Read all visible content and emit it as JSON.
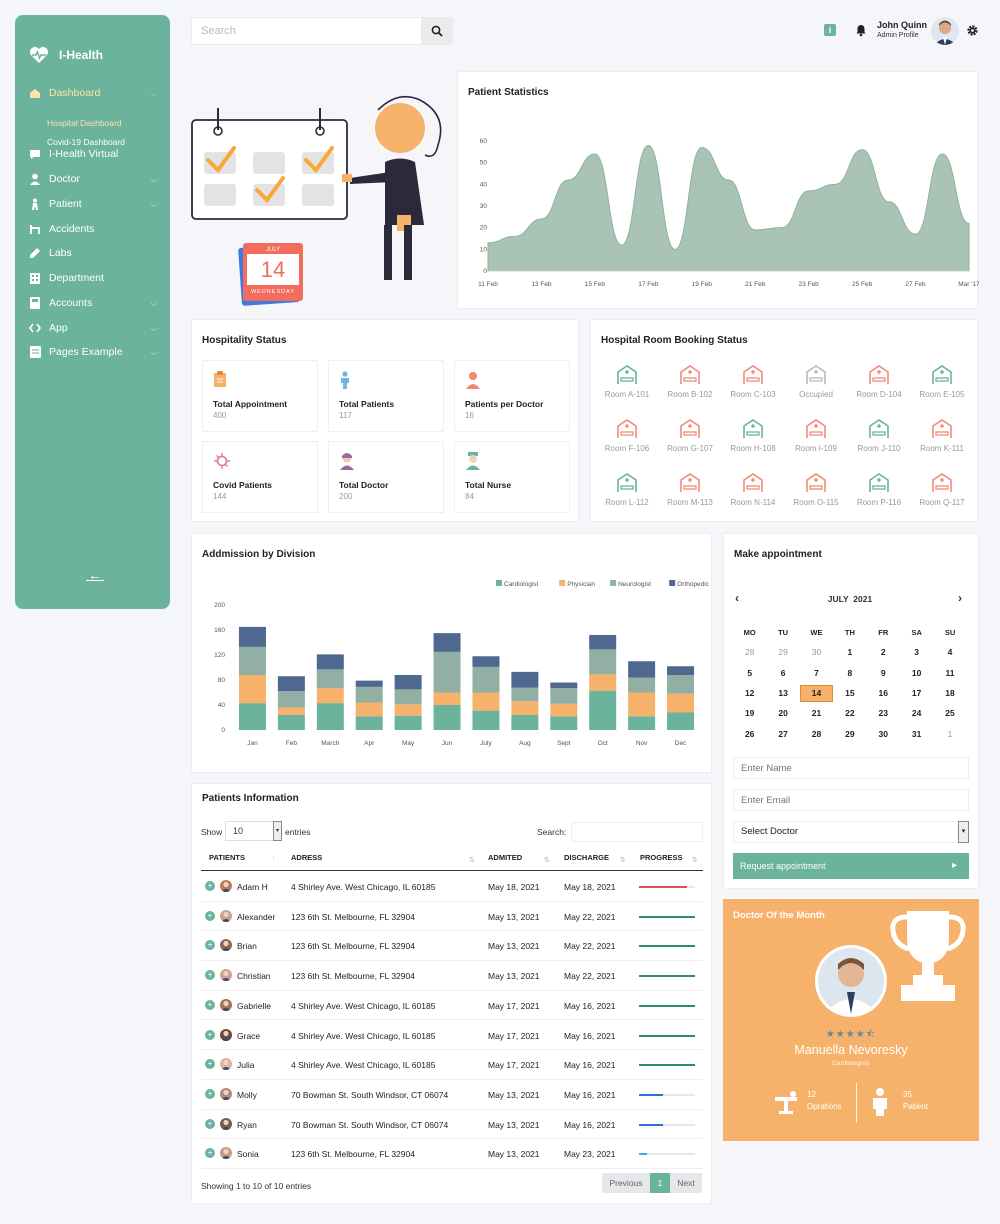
{
  "app": {
    "name": "I-Health"
  },
  "sidebar": {
    "items": [
      {
        "label": "Dashboard",
        "icon": "home-icon",
        "expandable": true,
        "active": true
      },
      {
        "label": "I-Health Virtual",
        "icon": "chat-icon",
        "expandable": false
      },
      {
        "label": "Doctor",
        "icon": "doctor-icon",
        "expandable": true
      },
      {
        "label": "Patient",
        "icon": "patient-icon",
        "expandable": true
      },
      {
        "label": "Accidents",
        "icon": "accident-icon",
        "expandable": false
      },
      {
        "label": "Labs",
        "icon": "labs-icon",
        "expandable": false
      },
      {
        "label": "Department",
        "icon": "building-icon",
        "expandable": false
      },
      {
        "label": "Accounts",
        "icon": "calculator-icon",
        "expandable": true
      },
      {
        "label": "App",
        "icon": "code-icon",
        "expandable": true
      },
      {
        "label": "Pages Example",
        "icon": "pages-icon",
        "expandable": true
      }
    ],
    "subitems": [
      {
        "label": "Hospital Dashboard",
        "active": true
      },
      {
        "label": "Covid-19 Dashboard",
        "active": false
      }
    ]
  },
  "search": {
    "placeholder": "Search"
  },
  "profile": {
    "name": "John Quinn",
    "role": "Admin Profile"
  },
  "illustration": {
    "month": "JULY",
    "day": "14",
    "weekday": "WEDNESDAY"
  },
  "patient_statistics": {
    "title": "Patient Statistics"
  },
  "chart_data": [
    {
      "type": "area",
      "title": "Patient Statistics",
      "x": [
        "11 Feb",
        "12 Feb",
        "13 Feb",
        "14 Feb",
        "15 Feb",
        "16 Feb",
        "17 Feb",
        "18 Feb",
        "19 Feb",
        "20 Feb",
        "21 Feb",
        "22 Feb",
        "23 Feb",
        "24 Feb",
        "25 Feb",
        "26 Feb",
        "27 Feb",
        "28 Feb",
        "Mar '17"
      ],
      "xticks": [
        "11 Feb",
        "13 Feb",
        "15 Feb",
        "17 Feb",
        "19 Feb",
        "21 Feb",
        "23 Feb",
        "25 Feb",
        "27 Feb",
        "Mar '17"
      ],
      "values": [
        13,
        16,
        24,
        42,
        54,
        12,
        58,
        10,
        57,
        42,
        19,
        20,
        37,
        40,
        56,
        32,
        17,
        54,
        22
      ],
      "ylim": [
        0,
        60
      ],
      "yticks": [
        0,
        10,
        20,
        30,
        40,
        50,
        60
      ],
      "color": "#a9c3b5"
    },
    {
      "type": "bar",
      "stacked": true,
      "title": "Addmission by Division",
      "categories": [
        "Jan",
        "Feb",
        "March",
        "Apr",
        "May",
        "Jun",
        "July",
        "Aug",
        "Sept",
        "Oct",
        "Nov",
        "Dec"
      ],
      "series": [
        {
          "name": "Cardiologist",
          "color": "#6bb39d",
          "values": [
            43,
            24,
            43,
            22,
            23,
            40,
            31,
            24,
            22,
            63,
            22,
            28
          ]
        },
        {
          "name": "Physician",
          "color": "#f6b26b",
          "values": [
            45,
            12,
            24,
            22,
            18,
            20,
            29,
            22,
            20,
            26,
            38,
            30
          ]
        },
        {
          "name": "Neurologist",
          "color": "#91b0a3",
          "values": [
            45,
            26,
            30,
            25,
            24,
            65,
            41,
            22,
            25,
            40,
            24,
            30
          ]
        },
        {
          "name": "Orthopedic",
          "color": "#4e6890",
          "values": [
            32,
            24,
            24,
            10,
            23,
            30,
            17,
            25,
            9,
            23,
            26,
            14
          ]
        }
      ],
      "ylim": [
        0,
        200
      ],
      "yticks": [
        0,
        40,
        80,
        120,
        160,
        200
      ],
      "legend": "top-right"
    }
  ],
  "hospitality": {
    "title": "Hospitality Status",
    "cards": [
      {
        "label": "Total Appointment",
        "value": "400",
        "icon": "clipboard-icon",
        "color": "#f6b26b"
      },
      {
        "label": "Total Patients",
        "value": "117",
        "icon": "person-icon",
        "color": "#6fb7e0"
      },
      {
        "label": "Patients per Doctor",
        "value": "16",
        "icon": "doctor-patient-icon",
        "color": "#f08a6b"
      },
      {
        "label": "Covid Patients",
        "value": "144",
        "icon": "virus-icon",
        "color": "#e07a8a"
      },
      {
        "label": "Total Doctor",
        "value": "200",
        "icon": "doctor-icon",
        "color": "#9a6b9a"
      },
      {
        "label": "Total Nurse",
        "value": "84",
        "icon": "nurse-icon",
        "color": "#6bb39d"
      }
    ]
  },
  "rooms": {
    "title": "Hospital Room Booking Status",
    "items": [
      {
        "label": "Room A-101",
        "color": "#6bb39d"
      },
      {
        "label": "Room B-102",
        "color": "#f08a7b"
      },
      {
        "label": "Room C-103",
        "color": "#f08a7b"
      },
      {
        "label": "Occupied",
        "color": "#b9b9b9"
      },
      {
        "label": "Room D-104",
        "color": "#f08a7b"
      },
      {
        "label": "Room E-105",
        "color": "#6bb39d"
      },
      {
        "label": "Room F-106",
        "color": "#f08a7b"
      },
      {
        "label": "Room G-107",
        "color": "#f08a7b"
      },
      {
        "label": "Room H-108",
        "color": "#6bb39d"
      },
      {
        "label": "Room I-109",
        "color": "#f08a7b"
      },
      {
        "label": "Room J-110",
        "color": "#6bb39d"
      },
      {
        "label": "Room K-111",
        "color": "#f08a7b"
      },
      {
        "label": "Room L-112",
        "color": "#6bb39d"
      },
      {
        "label": "Room M-113",
        "color": "#f08a7b"
      },
      {
        "label": "Room N-114",
        "color": "#f08a7b"
      },
      {
        "label": "Room O-115",
        "color": "#f08a7b"
      },
      {
        "label": "Room P-116",
        "color": "#6bb39d"
      },
      {
        "label": "Room Q-117",
        "color": "#f08a7b"
      }
    ]
  },
  "admission": {
    "title": "Addmission by Division"
  },
  "appointment": {
    "title": "Make appointment",
    "month": "JULY  2021",
    "weekdays": [
      "MO",
      "TU",
      "WE",
      "TH",
      "FR",
      "SA",
      "SU"
    ],
    "weeks": [
      [
        "28",
        "29",
        "30",
        "1",
        "2",
        "3",
        "4"
      ],
      [
        "5",
        "6",
        "7",
        "8",
        "9",
        "10",
        "11"
      ],
      [
        "12",
        "13",
        "14",
        "15",
        "16",
        "17",
        "18"
      ],
      [
        "19",
        "20",
        "21",
        "22",
        "23",
        "24",
        "25"
      ],
      [
        "26",
        "27",
        "28",
        "29",
        "30",
        "31",
        "1"
      ]
    ],
    "selected_day": "14",
    "name_placeholder": "Enter Name",
    "email_placeholder": "Enter Email",
    "doctor_select": "Select Doctor",
    "button": "Request appointment"
  },
  "patients": {
    "title": "Patients Information",
    "show_label": "Show",
    "entries_value": "10",
    "entries_label": "entries",
    "search_label": "Search:",
    "columns": [
      "PATIENTS",
      "ADRESS",
      "ADMITED",
      "DISCHARGE",
      "PROGRESS"
    ],
    "rows": [
      {
        "name": "Adam H",
        "address": "4 Shirley Ave. West Chicago, IL 60185",
        "admitted": "May 18, 2021",
        "discharge": "May 18, 2021",
        "progress": 0.85,
        "color": "#d9534f"
      },
      {
        "name": "Alexander",
        "address": "123 6th St. Melbourne, FL 32904",
        "admitted": "May 13, 2021",
        "discharge": "May 22, 2021",
        "progress": 1.0,
        "color": "#2e8b6b"
      },
      {
        "name": "Brian",
        "address": "123 6th St. Melbourne, FL 32904",
        "admitted": "May 13, 2021",
        "discharge": "May 22, 2021",
        "progress": 1.0,
        "color": "#2e8b6b"
      },
      {
        "name": "Christian",
        "address": "123 6th St. Melbourne, FL 32904",
        "admitted": "May 13, 2021",
        "discharge": "May 22, 2021",
        "progress": 1.0,
        "color": "#2e8b6b"
      },
      {
        "name": "Gabrielle",
        "address": "4 Shirley Ave. West Chicago, IL 60185",
        "admitted": "May 17, 2021",
        "discharge": "May 16, 2021",
        "progress": 1.0,
        "color": "#2e8b6b"
      },
      {
        "name": "Grace",
        "address": "4 Shirley Ave. West Chicago, IL 60185",
        "admitted": "May 17, 2021",
        "discharge": "May 16, 2021",
        "progress": 1.0,
        "color": "#2e8b6b"
      },
      {
        "name": "Julia",
        "address": "4 Shirley Ave. West Chicago, IL 60185",
        "admitted": "May 17, 2021",
        "discharge": "May 16, 2021",
        "progress": 1.0,
        "color": "#2e8b6b"
      },
      {
        "name": "Molly",
        "address": "70 Bowman St. South Windsor, CT 06074",
        "admitted": "May 13, 2021",
        "discharge": "May 16, 2021",
        "progress": 0.42,
        "color": "#2f6fd6"
      },
      {
        "name": "Ryan",
        "address": "70 Bowman St. South Windsor, CT 06074",
        "admitted": "May 13, 2021",
        "discharge": "May 16, 2021",
        "progress": 0.42,
        "color": "#2f6fd6"
      },
      {
        "name": "Sonia",
        "address": "123 6th St. Melbourne, FL 32904",
        "admitted": "May 13, 2021",
        "discharge": "May 23, 2021",
        "progress": 0.14,
        "color": "#3ab0e0"
      }
    ],
    "footer": "Showing 1 to 10 of 10 entries",
    "pagination": {
      "previous": "Previous",
      "page": "1",
      "next": "Next"
    }
  },
  "doctor_of_month": {
    "title": "Doctor Of the Month",
    "name": "Manuella Nevoresky",
    "specialty": "Cardiologists",
    "rating": 4.5,
    "stars": "★★★★⯪",
    "operations_count": "12",
    "operations_label": "Oprations",
    "patients_count": "35",
    "patients_label": "Patient"
  }
}
